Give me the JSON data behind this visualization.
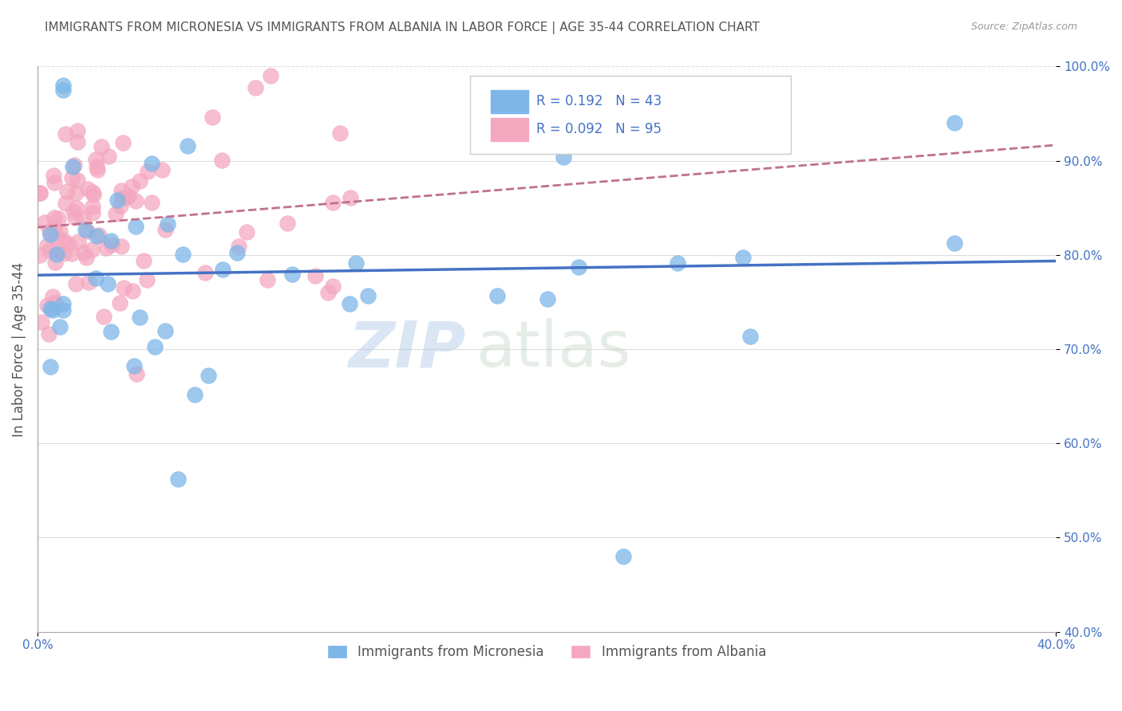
{
  "title": "IMMIGRANTS FROM MICRONESIA VS IMMIGRANTS FROM ALBANIA IN LABOR FORCE | AGE 35-44 CORRELATION CHART",
  "source": "Source: ZipAtlas.com",
  "ylabel": "In Labor Force | Age 35-44",
  "xmin": 0.0,
  "xmax": 0.4,
  "ymin": 0.4,
  "ymax": 1.0,
  "yticks": [
    0.4,
    0.5,
    0.6,
    0.7,
    0.8,
    0.9,
    1.0
  ],
  "ytick_labels": [
    "40.0%",
    "50.0%",
    "60.0%",
    "70.0%",
    "80.0%",
    "90.0%",
    "100.0%"
  ],
  "blue_color": "#7EB6E8",
  "pink_color": "#F4A8C0",
  "blue_line_color": "#4472C4",
  "pink_line_color": "#C07090",
  "R_blue": 0.192,
  "N_blue": 43,
  "R_pink": 0.092,
  "N_pink": 95,
  "watermark_zip": "ZIP",
  "watermark_atlas": "atlas",
  "axis_color": "#AAAAAA",
  "grid_color": "#DDDDDD",
  "title_color": "#555555",
  "label_color": "#4472C4",
  "legend_label_blue": "Immigrants from Micronesia",
  "legend_label_pink": "Immigrants from Albania"
}
